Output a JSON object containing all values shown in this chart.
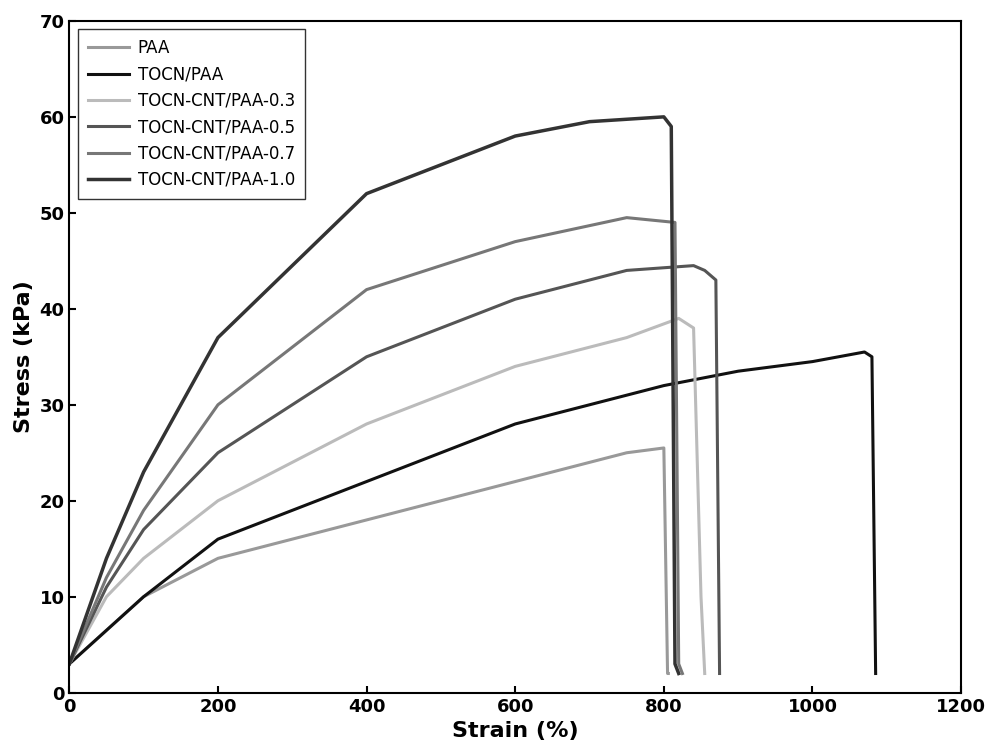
{
  "title": "",
  "xlabel": "Strain (%)",
  "ylabel": "Stress (kPa)",
  "xlim": [
    0,
    1200
  ],
  "ylim": [
    0,
    70
  ],
  "xticks": [
    0,
    200,
    400,
    600,
    800,
    1000,
    1200
  ],
  "yticks": [
    0,
    10,
    20,
    30,
    40,
    50,
    60,
    70
  ],
  "series": [
    {
      "label": "PAA",
      "color": "#999999",
      "linewidth": 2.2,
      "points": [
        [
          0,
          3
        ],
        [
          100,
          10
        ],
        [
          200,
          14
        ],
        [
          400,
          18
        ],
        [
          600,
          22
        ],
        [
          750,
          25
        ],
        [
          800,
          25.5
        ],
        [
          805,
          2
        ],
        [
          806,
          2
        ]
      ]
    },
    {
      "label": "TOCN/PAA",
      "color": "#111111",
      "linewidth": 2.2,
      "points": [
        [
          0,
          3
        ],
        [
          100,
          10
        ],
        [
          200,
          16
        ],
        [
          400,
          22
        ],
        [
          600,
          28
        ],
        [
          800,
          32
        ],
        [
          900,
          33.5
        ],
        [
          1000,
          34.5
        ],
        [
          1070,
          35.5
        ],
        [
          1080,
          35
        ],
        [
          1085,
          2
        ]
      ]
    },
    {
      "label": "TOCN-CNT/PAA-0.3",
      "color": "#bbbbbb",
      "linewidth": 2.2,
      "points": [
        [
          0,
          3
        ],
        [
          50,
          10
        ],
        [
          100,
          14
        ],
        [
          200,
          20
        ],
        [
          400,
          28
        ],
        [
          600,
          34
        ],
        [
          750,
          37
        ],
        [
          820,
          39
        ],
        [
          840,
          38
        ],
        [
          850,
          10
        ],
        [
          855,
          2
        ]
      ]
    },
    {
      "label": "TOCN-CNT/PAA-0.5",
      "color": "#555555",
      "linewidth": 2.2,
      "points": [
        [
          0,
          3
        ],
        [
          50,
          11
        ],
        [
          100,
          17
        ],
        [
          200,
          25
        ],
        [
          400,
          35
        ],
        [
          600,
          41
        ],
        [
          750,
          44
        ],
        [
          840,
          44.5
        ],
        [
          855,
          44
        ],
        [
          870,
          43
        ],
        [
          875,
          2
        ]
      ]
    },
    {
      "label": "TOCN-CNT/PAA-0.7",
      "color": "#777777",
      "linewidth": 2.2,
      "points": [
        [
          0,
          3
        ],
        [
          50,
          12
        ],
        [
          100,
          19
        ],
        [
          200,
          30
        ],
        [
          400,
          42
        ],
        [
          600,
          47
        ],
        [
          750,
          49.5
        ],
        [
          815,
          49
        ],
        [
          820,
          3
        ],
        [
          825,
          2
        ]
      ]
    },
    {
      "label": "TOCN-CNT/PAA-1.0",
      "color": "#333333",
      "linewidth": 2.5,
      "points": [
        [
          0,
          3
        ],
        [
          50,
          14
        ],
        [
          100,
          23
        ],
        [
          200,
          37
        ],
        [
          400,
          52
        ],
        [
          600,
          58
        ],
        [
          700,
          59.5
        ],
        [
          800,
          60
        ],
        [
          810,
          59
        ],
        [
          815,
          3
        ],
        [
          820,
          2
        ]
      ]
    }
  ],
  "legend_fontsize": 12,
  "axis_label_fontsize": 16,
  "tick_fontsize": 13,
  "background_color": "#ffffff"
}
